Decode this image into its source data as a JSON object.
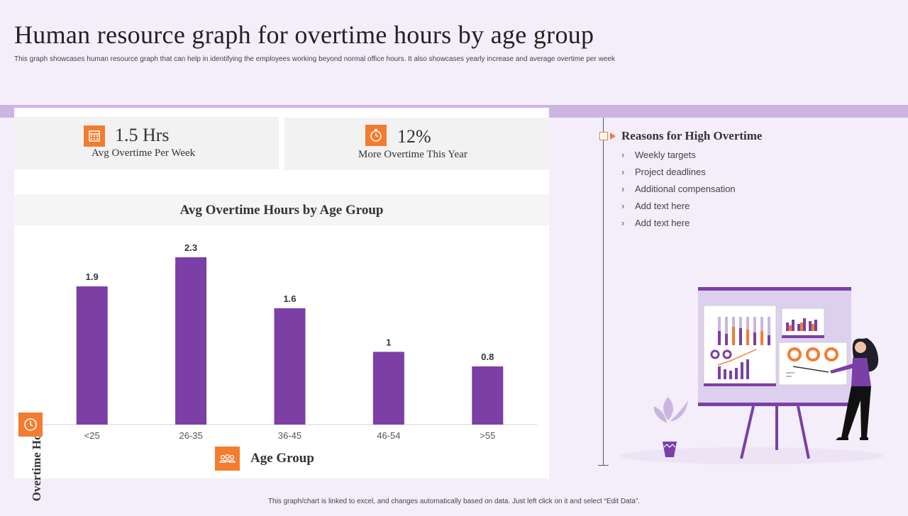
{
  "title": "Human resource graph for overtime hours by age group",
  "subtitle": "This graph showcases human resource graph that can help in identifying the employees working beyond normal office hours. It also showcases yearly increase and average overtime per week",
  "kpis": [
    {
      "value": "1.5 Hrs",
      "label": "Avg Overtime  Per Week",
      "icon": "calendar-icon"
    },
    {
      "value": "12%",
      "label": "More Overtime  This  Year",
      "icon": "stopwatch-icon"
    }
  ],
  "reasons": {
    "title": "Reasons for High Overtime",
    "items": [
      "Weekly targets",
      "Project deadlines",
      "Additional compensation",
      "Add text here",
      "Add text here"
    ]
  },
  "footer": "This graph/chart is linked to excel, and changes automatically based on data. Just left click on it and select “Edit Data”.",
  "colors": {
    "bar": "#7b3fa6",
    "accent": "#f47c2f",
    "band": "#cdb4e3",
    "background": "#f3eef9"
  },
  "chart_data": {
    "type": "bar",
    "title": "Avg Overtime  Hours  by Age Group",
    "xlabel": "Age Group",
    "ylabel": "Overtime Hours",
    "categories": [
      "<25",
      "26-35",
      "36-45",
      "46-54",
      ">55"
    ],
    "values": [
      1.9,
      2.3,
      1.6,
      1,
      0.8
    ],
    "value_labels": [
      "1.9",
      "2.3",
      "1.6",
      "1",
      "0.8"
    ],
    "ylim": [
      0,
      2.3
    ],
    "grid": false,
    "legend": "none"
  }
}
